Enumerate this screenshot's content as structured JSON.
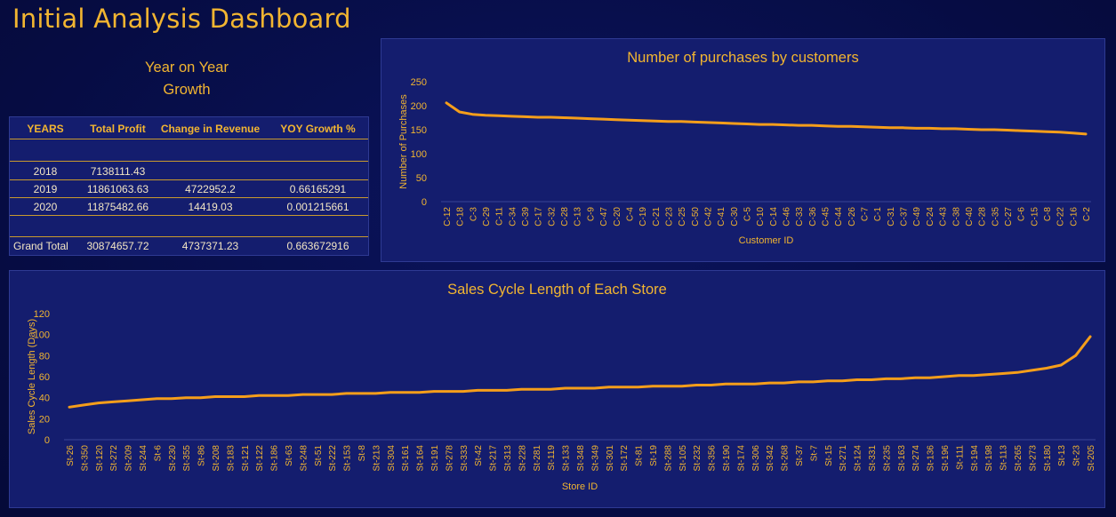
{
  "page": {
    "title": "Initial Analysis Dashboard"
  },
  "yoy": {
    "heading_line1": "Year on Year",
    "heading_line2": "Growth",
    "headers": [
      "YEARS",
      "Total Profit",
      "Change in Revenue",
      "YOY Growth %"
    ],
    "rows": [
      [
        "2018",
        "7138111.43",
        "",
        ""
      ],
      [
        "2019",
        "11861063.63",
        "4722952.2",
        "0.66165291"
      ],
      [
        "2020",
        "11875482.66",
        "14419.03",
        "0.001215661"
      ]
    ],
    "total": [
      "Grand Total",
      "30874657.72",
      "4737371.23",
      "0.663672916"
    ]
  },
  "colors": {
    "line": "#f59e1b",
    "text": "#f2b531",
    "panel": "#141d6e",
    "background": "#060c43"
  },
  "chart_data": [
    {
      "type": "line",
      "title": "Number of purchases by customers",
      "xlabel": "Customer ID",
      "ylabel": "Number of Purchases",
      "ylim": [
        0,
        250
      ],
      "yticks": [
        0,
        50,
        100,
        150,
        200,
        250
      ],
      "categories": [
        "C-12",
        "C-18",
        "C-3",
        "C-29",
        "C-11",
        "C-34",
        "C-39",
        "C-17",
        "C-32",
        "C-28",
        "C-13",
        "C-9",
        "C-47",
        "C-20",
        "C-4",
        "C-19",
        "C-21",
        "C-23",
        "C-25",
        "C-50",
        "C-42",
        "C-41",
        "C-30",
        "C-5",
        "C-10",
        "C-14",
        "C-46",
        "C-33",
        "C-36",
        "C-45",
        "C-44",
        "C-26",
        "C-7",
        "C-1",
        "C-31",
        "C-37",
        "C-49",
        "C-24",
        "C-43",
        "C-38",
        "C-40",
        "C-28",
        "C-35",
        "C-27",
        "C-6",
        "C-15",
        "C-8",
        "C-22",
        "C-16",
        "C-2"
      ],
      "values": [
        206,
        187,
        182,
        180,
        179,
        178,
        177,
        176,
        176,
        175,
        174,
        173,
        172,
        171,
        170,
        169,
        168,
        167,
        167,
        166,
        165,
        164,
        163,
        162,
        161,
        161,
        160,
        159,
        159,
        158,
        157,
        157,
        156,
        155,
        154,
        154,
        153,
        153,
        152,
        152,
        151,
        150,
        150,
        149,
        148,
        147,
        146,
        145,
        143,
        141
      ],
      "grid": false,
      "legend": "none"
    },
    {
      "type": "line",
      "title": "Sales Cycle Length of Each Store",
      "xlabel": "Store ID",
      "ylabel": "Sales Cycle Length (Days)",
      "ylim": [
        0,
        120
      ],
      "yticks": [
        0,
        20,
        40,
        60,
        80,
        100,
        120
      ],
      "categories": [
        "St-26",
        "St-350",
        "St-120",
        "St-272",
        "St-209",
        "St-244",
        "St-6",
        "St-230",
        "St-355",
        "St-86",
        "St-208",
        "St-183",
        "St-121",
        "St-122",
        "St-186",
        "St-63",
        "St-248",
        "St-51",
        "St-222",
        "St-153",
        "St-8",
        "St-213",
        "St-304",
        "St-161",
        "St-164",
        "St-191",
        "St-278",
        "St-333",
        "St-42",
        "St-217",
        "St-313",
        "St-228",
        "St-281",
        "St-119",
        "St-133",
        "St-348",
        "St-349",
        "St-301",
        "St-172",
        "St-81",
        "St-19",
        "St-288",
        "St-105",
        "St-232",
        "St-356",
        "St-190",
        "St-174",
        "St-306",
        "St-342",
        "St-268",
        "St-37",
        "St-7",
        "St-15",
        "St-271",
        "St-124",
        "St-331",
        "St-235",
        "St-163",
        "St-274",
        "St-136",
        "St-196",
        "St-111",
        "St-194",
        "St-198",
        "St-113",
        "St-265",
        "St-273",
        "St-180",
        "St-13",
        "St-23",
        "St-205"
      ],
      "values": [
        31,
        33,
        35,
        36,
        37,
        38,
        39,
        39,
        40,
        40,
        41,
        41,
        41,
        42,
        42,
        42,
        43,
        43,
        43,
        44,
        44,
        44,
        45,
        45,
        45,
        46,
        46,
        46,
        47,
        47,
        47,
        48,
        48,
        48,
        49,
        49,
        49,
        50,
        50,
        50,
        51,
        51,
        51,
        52,
        52,
        53,
        53,
        53,
        54,
        54,
        55,
        55,
        56,
        56,
        57,
        57,
        58,
        58,
        59,
        59,
        60,
        61,
        61,
        62,
        63,
        64,
        66,
        68,
        71,
        80,
        98
      ],
      "grid": false,
      "legend": "none"
    }
  ]
}
